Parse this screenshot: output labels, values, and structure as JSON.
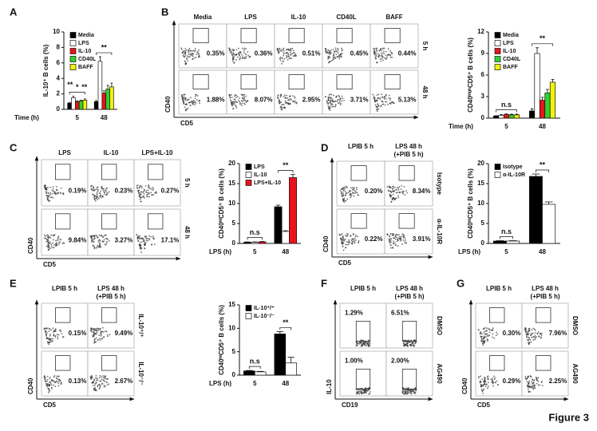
{
  "figure_title": "Figure 3",
  "panel_letters": [
    "A",
    "B",
    "C",
    "D",
    "E",
    "F",
    "G"
  ],
  "chart_data": [
    {
      "type": "bar",
      "ylabel": "IL-10⁺ B cells (%)",
      "xlabel": "Time (h)",
      "categories": [
        "5",
        "48"
      ],
      "ylim": [
        0,
        10
      ],
      "yticks": [
        0,
        2,
        4,
        6,
        8,
        10
      ],
      "legend": "upper left",
      "significance": [
        [
          "**",
          "*",
          "**"
        ],
        [
          "**"
        ]
      ],
      "series": [
        {
          "name": "Media",
          "color": "#000000",
          "values": [
            0.8,
            1.0
          ],
          "errors": [
            0.1,
            0.15
          ]
        },
        {
          "name": "LPS",
          "color": "#ffffff",
          "values": [
            1.5,
            6.2
          ],
          "errors": [
            0.2,
            0.6
          ]
        },
        {
          "name": "IL-10",
          "color": "#e8141c",
          "values": [
            1.0,
            2.1
          ],
          "errors": [
            0.1,
            0.3
          ]
        },
        {
          "name": "CD40L",
          "color": "#2ed12e",
          "values": [
            1.1,
            2.6
          ],
          "errors": [
            0.1,
            0.5
          ]
        },
        {
          "name": "BAFF",
          "color": "#f2f20c",
          "values": [
            1.2,
            2.9
          ],
          "errors": [
            0.15,
            0.5
          ]
        }
      ]
    },
    {
      "type": "bar",
      "ylabel": "CD40ʰⁱᵍʰCD5⁺ B cells (%)",
      "xlabel": "Time (h)",
      "categories": [
        "5",
        "48"
      ],
      "ylim": [
        0,
        12
      ],
      "yticks": [
        0,
        3,
        6,
        9,
        12
      ],
      "legend": "upper left",
      "significance": [
        [
          "n.s"
        ],
        [
          "**"
        ]
      ],
      "series": [
        {
          "name": "Media",
          "color": "#000000",
          "values": [
            0.3,
            1.0
          ],
          "errors": [
            0.05,
            0.3
          ]
        },
        {
          "name": "LPS",
          "color": "#ffffff",
          "values": [
            0.4,
            9.0
          ],
          "errors": [
            0.1,
            0.8
          ]
        },
        {
          "name": "IL-10",
          "color": "#e8141c",
          "values": [
            0.5,
            2.5
          ],
          "errors": [
            0.1,
            0.4
          ]
        },
        {
          "name": "CD40L",
          "color": "#2ed12e",
          "values": [
            0.45,
            3.5
          ],
          "errors": [
            0.1,
            0.5
          ]
        },
        {
          "name": "BAFF",
          "color": "#f2f20c",
          "values": [
            0.45,
            5.0
          ],
          "errors": [
            0.1,
            0.4
          ]
        }
      ]
    },
    {
      "type": "bar",
      "ylabel": "CD40ʰⁱCD5⁺ B cells (%)",
      "xlabel": "LPS (h)",
      "categories": [
        "5",
        "48"
      ],
      "ylim": [
        0,
        20
      ],
      "yticks": [
        0,
        5,
        10,
        15,
        20
      ],
      "legend": "upper left",
      "significance": [
        [
          "n.s"
        ],
        [
          "**"
        ]
      ],
      "series": [
        {
          "name": "LPS",
          "color": "#000000",
          "values": [
            0.3,
            9.2
          ],
          "errors": [
            0.1,
            0.4
          ]
        },
        {
          "name": "IL-10",
          "color": "#ffffff",
          "values": [
            0.3,
            3.0
          ],
          "errors": [
            0.1,
            0.2
          ]
        },
        {
          "name": "LPS+IL-10",
          "color": "#e8141c",
          "values": [
            0.4,
            16.5
          ],
          "errors": [
            0.1,
            0.8
          ]
        }
      ]
    },
    {
      "type": "bar",
      "ylabel": "CD40ʰⁱCD5⁺ B cells (%)",
      "xlabel": "LPS (h)",
      "categories": [
        "5",
        "48"
      ],
      "ylim": [
        0,
        20
      ],
      "yticks": [
        0,
        5,
        10,
        15,
        20
      ],
      "legend": "upper left",
      "significance": [
        [
          "n.s"
        ],
        [
          "**"
        ]
      ],
      "series": [
        {
          "name": "Isotype",
          "color": "#000000",
          "values": [
            0.6,
            16.8
          ],
          "errors": [
            0.1,
            0.6
          ]
        },
        {
          "name": "α-IL-10R",
          "color": "#ffffff",
          "values": [
            0.6,
            9.8
          ],
          "errors": [
            0.1,
            0.6
          ]
        }
      ]
    },
    {
      "type": "bar",
      "ylabel": "CD40ʰⁱCD5⁺ B cells (%)",
      "xlabel": "LPS (h)",
      "categories": [
        "5",
        "48"
      ],
      "ylim": [
        0,
        15
      ],
      "yticks": [
        0,
        5,
        10,
        15
      ],
      "legend": "upper left",
      "significance": [
        [
          "n.s"
        ],
        [
          "**"
        ]
      ],
      "series": [
        {
          "name": "IL-10⁺/⁺",
          "color": "#000000",
          "values": [
            0.9,
            8.8
          ],
          "errors": [
            0.1,
            0.5
          ]
        },
        {
          "name": "IL-10⁻/⁻",
          "color": "#ffffff",
          "values": [
            0.7,
            2.6
          ],
          "errors": [
            0.1,
            1.2
          ]
        }
      ]
    }
  ],
  "flow_panels": [
    {
      "columns": [
        [
          "Media"
        ],
        [
          "LPS"
        ],
        [
          "IL-10"
        ],
        [
          "CD40L"
        ],
        [
          "BAFF"
        ]
      ],
      "rows": [
        "5 h",
        "48 h"
      ],
      "percentages": [
        [
          "0.35%",
          "0.36%",
          "0.51%",
          "0.45%",
          "0.44%"
        ],
        [
          "1.88%",
          "8.07%",
          "2.95%",
          "3.71%",
          "5.13%"
        ]
      ],
      "ylabel": "CD40",
      "xlabel": "CD5"
    },
    {
      "columns": [
        [
          "LPS"
        ],
        [
          "IL-10"
        ],
        [
          "LPS+IL-10"
        ]
      ],
      "rows": [
        "5 h",
        "48 h"
      ],
      "percentages": [
        [
          "0.19%",
          "0.23%",
          "0.27%"
        ],
        [
          "9.84%",
          "3.27%",
          "17.1%"
        ]
      ],
      "ylabel": "CD40",
      "xlabel": "CD5"
    },
    {
      "columns": [
        [
          "LPIB 5 h"
        ],
        [
          "LPS 48 h",
          "(+PIB 5 h)"
        ]
      ],
      "rows": [
        "Isotype",
        "α-IL-10R"
      ],
      "percentages": [
        [
          "0.20%",
          "8.34%"
        ],
        [
          "0.22%",
          "3.91%"
        ]
      ],
      "ylabel": "CD40",
      "xlabel": "CD5"
    },
    {
      "columns": [
        [
          "LPIB 5 h"
        ],
        [
          "LPS 48 h",
          "(+PIB 5 h)"
        ]
      ],
      "rows": [
        "IL-10⁺/⁺",
        "IL-10⁻/⁻"
      ],
      "percentages": [
        [
          "0.15%",
          "9.49%"
        ],
        [
          "0.13%",
          "2.67%"
        ]
      ],
      "ylabel": "CD40",
      "xlabel": "CD5"
    },
    {
      "columns": [
        [
          "LPIB 5 h"
        ],
        [
          "LPS 48 h",
          "(+PIB 5 h)"
        ]
      ],
      "rows": [
        "DMSO",
        "AG490"
      ],
      "percentages": [
        [
          "1.29%",
          "6.51%"
        ],
        [
          "1.00%",
          "2.00%"
        ]
      ],
      "ylabel": "IL-10",
      "xlabel": "CD19"
    },
    {
      "columns": [
        [
          "LPIB 5 h"
        ],
        [
          "LPS 48 h",
          "(+PIB 5 h)"
        ]
      ],
      "rows": [
        "DMSO",
        "AG490"
      ],
      "percentages": [
        [
          "0.30%",
          "7.96%"
        ],
        [
          "0.29%",
          "2.25%"
        ]
      ],
      "ylabel": "CD40",
      "xlabel": "CD5"
    }
  ]
}
